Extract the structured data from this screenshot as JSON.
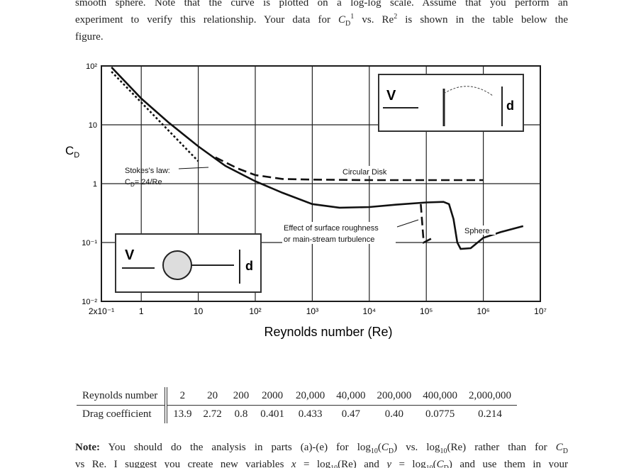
{
  "intro": {
    "lines": [
      "smooth sphere. Note that the curve is plotted on a log-log scale. Assume that you perform an",
      [
        "experiment to verify this relationship. Your data for ",
        "C",
        "D",
        "1",
        " vs. Re",
        "2",
        " is shown in the table below the"
      ],
      "figure."
    ]
  },
  "chart_data": {
    "type": "line",
    "xlabel": "Reynolds number (Re)",
    "ylabel": "C",
    "ylabel_sub": "D",
    "xscale": "log",
    "yscale": "log",
    "grid": true,
    "xlim": [
      0.2,
      10000000
    ],
    "ylim": [
      0.01,
      100
    ],
    "xticks": [
      {
        "value": 0.2,
        "label": "2x10⁻¹"
      },
      1,
      10,
      {
        "value": 100,
        "label": "10²"
      },
      {
        "value": 1000,
        "label": "10³"
      },
      {
        "value": 10000,
        "label": "10⁴"
      },
      {
        "value": 100000,
        "label": "10⁵"
      },
      {
        "value": 1000000,
        "label": "10⁶"
      },
      {
        "value": 10000000,
        "label": "10⁷"
      }
    ],
    "yticks": [
      {
        "value": 0.01,
        "label": "10⁻²"
      },
      {
        "value": 0.1,
        "label": "10⁻¹"
      },
      1,
      10,
      {
        "value": 100,
        "label": "10²"
      }
    ],
    "series": [
      {
        "name": "Sphere",
        "color": "#111",
        "style": "solid",
        "x": [
          0.3,
          1,
          3,
          10,
          30,
          100,
          300,
          1000,
          3000,
          10000,
          30000,
          100000,
          200000,
          250000,
          300000,
          350000,
          400000,
          600000,
          1000000,
          2000000,
          5000000
        ],
        "values": [
          95,
          28,
          11,
          4.3,
          2.0,
          1.1,
          0.7,
          0.45,
          0.39,
          0.4,
          0.44,
          0.48,
          0.49,
          0.45,
          0.25,
          0.1,
          0.078,
          0.08,
          0.12,
          0.15,
          0.19
        ]
      },
      {
        "name": "Circular Disk",
        "color": "#111",
        "style": "dashed",
        "x": [
          20,
          50,
          100,
          300,
          1000,
          10000,
          1000000
        ],
        "values": [
          2.8,
          1.8,
          1.4,
          1.2,
          1.17,
          1.15,
          1.15
        ]
      },
      {
        "color": "#111",
        "style": "dotted",
        "x": [
          0.3,
          10
        ],
        "values": [
          80,
          2.4
        ]
      },
      {
        "color": "#111",
        "style": "dashed",
        "x": [
          80000,
          90000,
          130000
        ],
        "values": [
          0.45,
          0.1,
          0.12
        ]
      }
    ],
    "annotations": {
      "stokes": [
        "Stokes's law:",
        "C",
        "D",
        "= 24/Re"
      ],
      "roughness": [
        "Effect of surface roughness",
        "or main-stream turbulence"
      ]
    }
  },
  "insets": [
    {
      "velocity": "V",
      "diameter": "d"
    },
    {
      "velocity": "V",
      "diameter": "d"
    }
  ],
  "table": {
    "rows": [
      [
        "Reynolds number",
        "2",
        "20",
        "200",
        "2000",
        "20,000",
        "40,000",
        "200,000",
        "400,000",
        "2,000,000"
      ],
      [
        "Drag coefficient",
        "13.9",
        "2.72",
        "0.8",
        "0.401",
        "0.433",
        "0.47",
        "0.40",
        "0.0775",
        "0.214"
      ]
    ]
  },
  "note": {
    "label": "Note:",
    "lines": [
      [
        " You should do the analysis in parts (a)-(e) for log",
        "10",
        "(",
        "C",
        "D",
        ") vs. log",
        "10",
        "(Re) rather than for ",
        "C",
        "D"
      ],
      [
        "vs Re. I suggest you create new variables ",
        "x",
        " = log",
        "10",
        "(Re) and ",
        "y",
        " = log",
        "10",
        "(",
        "C",
        "D",
        ") and use them in your"
      ]
    ]
  }
}
